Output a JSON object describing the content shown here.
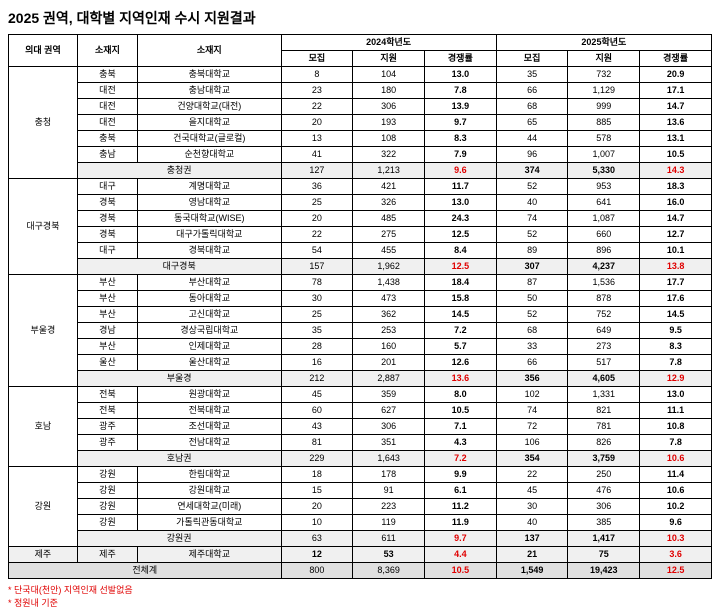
{
  "title": "2025 권역, 대학별 지역인재 수시 지원결과",
  "header": {
    "col_region": "의대 권역",
    "col_location": "소재지",
    "col_univ": "소재지",
    "year2024": "2024학년도",
    "year2025": "2025학년도",
    "recruit": "모집",
    "apply": "지원",
    "ratio": "경쟁률"
  },
  "regions": [
    {
      "name": "충청",
      "rows": [
        {
          "loc": "충북",
          "univ": "충북대학교",
          "r24": "8",
          "a24": "104",
          "c24": "13.0",
          "r25": "35",
          "a25": "732",
          "c25": "20.9"
        },
        {
          "loc": "대전",
          "univ": "충남대학교",
          "r24": "23",
          "a24": "180",
          "c24": "7.8",
          "r25": "66",
          "a25": "1,129",
          "c25": "17.1"
        },
        {
          "loc": "대전",
          "univ": "건양대학교(대전)",
          "r24": "22",
          "a24": "306",
          "c24": "13.9",
          "r25": "68",
          "a25": "999",
          "c25": "14.7"
        },
        {
          "loc": "대전",
          "univ": "을지대학교",
          "r24": "20",
          "a24": "193",
          "c24": "9.7",
          "r25": "65",
          "a25": "885",
          "c25": "13.6"
        },
        {
          "loc": "충북",
          "univ": "건국대학교(글로컬)",
          "r24": "13",
          "a24": "108",
          "c24": "8.3",
          "r25": "44",
          "a25": "578",
          "c25": "13.1"
        },
        {
          "loc": "충남",
          "univ": "순천향대학교",
          "r24": "41",
          "a24": "322",
          "c24": "7.9",
          "r25": "96",
          "a25": "1,007",
          "c25": "10.5"
        }
      ],
      "subtotal": {
        "label": "충청권",
        "r24": "127",
        "a24": "1,213",
        "c24": "9.6",
        "r25": "374",
        "a25": "5,330",
        "c25": "14.3"
      }
    },
    {
      "name": "대구경북",
      "rows": [
        {
          "loc": "대구",
          "univ": "계명대학교",
          "r24": "36",
          "a24": "421",
          "c24": "11.7",
          "r25": "52",
          "a25": "953",
          "c25": "18.3"
        },
        {
          "loc": "경북",
          "univ": "영남대학교",
          "r24": "25",
          "a24": "326",
          "c24": "13.0",
          "r25": "40",
          "a25": "641",
          "c25": "16.0"
        },
        {
          "loc": "경북",
          "univ": "동국대학교(WISE)",
          "r24": "20",
          "a24": "485",
          "c24": "24.3",
          "r25": "74",
          "a25": "1,087",
          "c25": "14.7"
        },
        {
          "loc": "경북",
          "univ": "대구가톨릭대학교",
          "r24": "22",
          "a24": "275",
          "c24": "12.5",
          "r25": "52",
          "a25": "660",
          "c25": "12.7"
        },
        {
          "loc": "대구",
          "univ": "경북대학교",
          "r24": "54",
          "a24": "455",
          "c24": "8.4",
          "r25": "89",
          "a25": "896",
          "c25": "10.1"
        }
      ],
      "subtotal": {
        "label": "대구경북",
        "r24": "157",
        "a24": "1,962",
        "c24": "12.5",
        "r25": "307",
        "a25": "4,237",
        "c25": "13.8"
      }
    },
    {
      "name": "부울경",
      "rows": [
        {
          "loc": "부산",
          "univ": "부산대학교",
          "r24": "78",
          "a24": "1,438",
          "c24": "18.4",
          "r25": "87",
          "a25": "1,536",
          "c25": "17.7"
        },
        {
          "loc": "부산",
          "univ": "동아대학교",
          "r24": "30",
          "a24": "473",
          "c24": "15.8",
          "r25": "50",
          "a25": "878",
          "c25": "17.6"
        },
        {
          "loc": "부산",
          "univ": "고신대학교",
          "r24": "25",
          "a24": "362",
          "c24": "14.5",
          "r25": "52",
          "a25": "752",
          "c25": "14.5"
        },
        {
          "loc": "경남",
          "univ": "경상국립대학교",
          "r24": "35",
          "a24": "253",
          "c24": "7.2",
          "r25": "68",
          "a25": "649",
          "c25": "9.5"
        },
        {
          "loc": "부산",
          "univ": "인제대학교",
          "r24": "28",
          "a24": "160",
          "c24": "5.7",
          "r25": "33",
          "a25": "273",
          "c25": "8.3"
        },
        {
          "loc": "울산",
          "univ": "울산대학교",
          "r24": "16",
          "a24": "201",
          "c24": "12.6",
          "r25": "66",
          "a25": "517",
          "c25": "7.8"
        }
      ],
      "subtotal": {
        "label": "부울경",
        "r24": "212",
        "a24": "2,887",
        "c24": "13.6",
        "r25": "356",
        "a25": "4,605",
        "c25": "12.9"
      }
    },
    {
      "name": "호남",
      "rows": [
        {
          "loc": "전북",
          "univ": "원광대학교",
          "r24": "45",
          "a24": "359",
          "c24": "8.0",
          "r25": "102",
          "a25": "1,331",
          "c25": "13.0"
        },
        {
          "loc": "전북",
          "univ": "전북대학교",
          "r24": "60",
          "a24": "627",
          "c24": "10.5",
          "r25": "74",
          "a25": "821",
          "c25": "11.1"
        },
        {
          "loc": "광주",
          "univ": "조선대학교",
          "r24": "43",
          "a24": "306",
          "c24": "7.1",
          "r25": "72",
          "a25": "781",
          "c25": "10.8"
        },
        {
          "loc": "광주",
          "univ": "전남대학교",
          "r24": "81",
          "a24": "351",
          "c24": "4.3",
          "r25": "106",
          "a25": "826",
          "c25": "7.8"
        }
      ],
      "subtotal": {
        "label": "호남권",
        "r24": "229",
        "a24": "1,643",
        "c24": "7.2",
        "r25": "354",
        "a25": "3,759",
        "c25": "10.6"
      }
    },
    {
      "name": "강원",
      "rows": [
        {
          "loc": "강원",
          "univ": "한림대학교",
          "r24": "18",
          "a24": "178",
          "c24": "9.9",
          "r25": "22",
          "a25": "250",
          "c25": "11.4"
        },
        {
          "loc": "강원",
          "univ": "강원대학교",
          "r24": "15",
          "a24": "91",
          "c24": "6.1",
          "r25": "45",
          "a25": "476",
          "c25": "10.6"
        },
        {
          "loc": "강원",
          "univ": "연세대학교(미래)",
          "r24": "20",
          "a24": "223",
          "c24": "11.2",
          "r25": "30",
          "a25": "306",
          "c25": "10.2"
        },
        {
          "loc": "강원",
          "univ": "가톨릭관동대학교",
          "r24": "10",
          "a24": "119",
          "c24": "11.9",
          "r25": "40",
          "a25": "385",
          "c25": "9.6"
        }
      ],
      "subtotal": {
        "label": "강원권",
        "r24": "63",
        "a24": "611",
        "c24": "9.7",
        "r25": "137",
        "a25": "1,417",
        "c25": "10.3"
      }
    },
    {
      "name": "제주",
      "rows": [
        {
          "loc": "제주",
          "univ": "제주대학교",
          "r24": "12",
          "a24": "53",
          "c24": "4.4",
          "r25": "21",
          "a25": "75",
          "c25": "3.6",
          "special": true
        }
      ],
      "subtotal": null
    }
  ],
  "grand": {
    "label": "전체계",
    "r24": "800",
    "a24": "8,369",
    "c24": "10.5",
    "r25": "1,549",
    "a25": "19,423",
    "c25": "12.5"
  },
  "notes": [
    "* 단국대(천안) 지역인재 선발없음",
    "* 정원내 기준"
  ]
}
